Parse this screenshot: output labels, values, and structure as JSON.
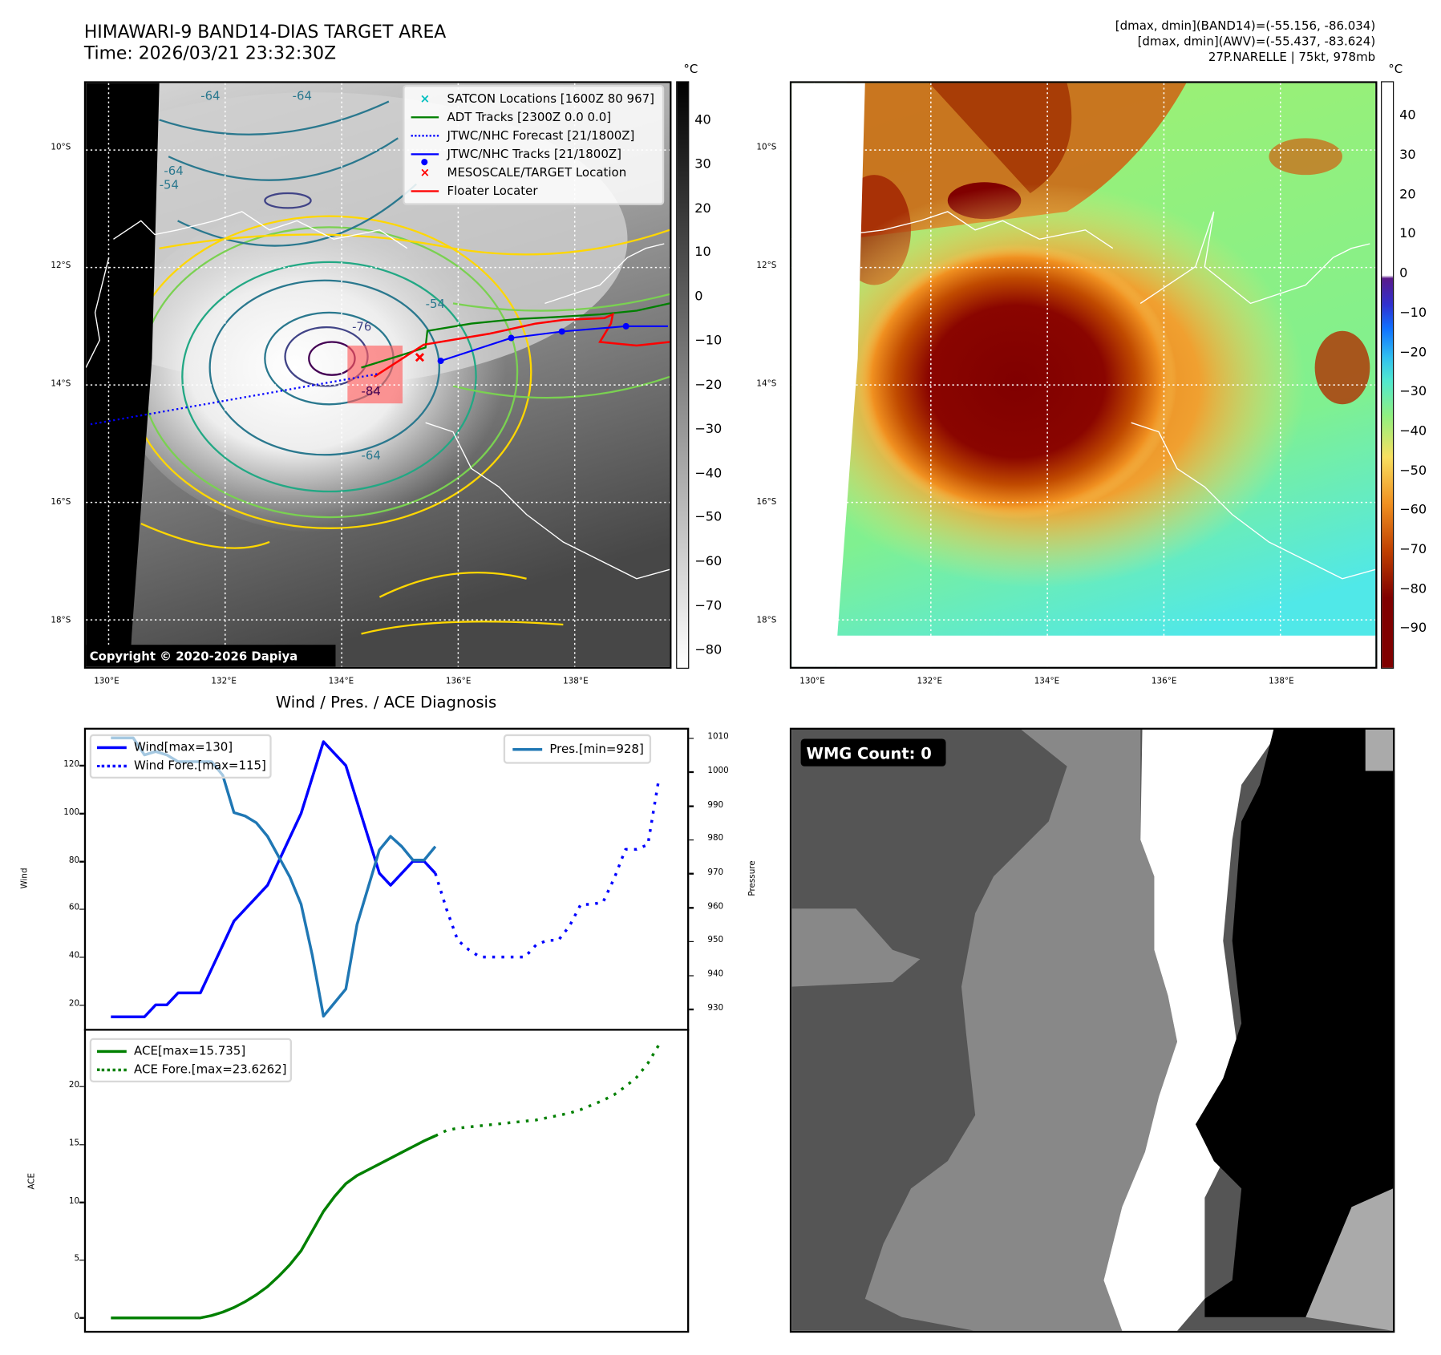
{
  "left_map": {
    "title_line1": "HIMAWARI-9 BAND14-DIAS TARGET AREA",
    "title_line2": "Time: 2026/03/21 23:32:30Z",
    "copyright": "Copyright © 2020-2026 Dapiya",
    "colorbar_unit": "°C",
    "colorbar_ticks": [
      "40",
      "30",
      "20",
      "10",
      "0",
      "−10",
      "−20",
      "−30",
      "−40",
      "−50",
      "−60",
      "−70",
      "−80"
    ],
    "colorbar_tick_values": [
      40,
      30,
      20,
      10,
      0,
      -10,
      -20,
      -30,
      -40,
      -50,
      -60,
      -70,
      -80
    ],
    "colorbar_range": [
      49,
      -84
    ],
    "contour_labels": [
      "-64",
      "-64",
      "-54",
      "-64",
      "-76",
      "-84",
      "-64",
      "-54"
    ],
    "legend": [
      {
        "label": "SATCON Locations [1600Z 80 967]",
        "color": "#00c0c0",
        "marker": "x"
      },
      {
        "label": "ADT Tracks [2300Z 0.0 0.0]",
        "color": "#008000",
        "marker": "line"
      },
      {
        "label": "JTWC/NHC Forecast [21/1800Z]",
        "color": "#0000ff",
        "marker": "dotted"
      },
      {
        "label": "JTWC/NHC Tracks [21/1800Z]",
        "color": "#0000ff",
        "marker": "line-dot"
      },
      {
        "label": "MESOSCALE/TARGET Location",
        "color": "#ff0000",
        "marker": "x"
      },
      {
        "label": "Floater Locater",
        "color": "#ff0000",
        "marker": "line"
      }
    ],
    "jtwc_track": [
      [
        135.7,
        13.59
      ],
      [
        136.91,
        13.2
      ],
      [
        137.78,
        13.09
      ],
      [
        138.88,
        13.0
      ],
      [
        139.6,
        13.0
      ]
    ],
    "jtwc_forecast": [
      [
        129.69,
        14.67
      ],
      [
        134.63,
        13.81
      ]
    ],
    "target_location": [
      135.34,
      13.53
    ]
  },
  "right_map": {
    "info_line1": "[dmax, dmin](BAND14)=(-55.156, -86.034)",
    "info_line2": "[dmax, dmin](AWV)=(-55.437, -83.624)",
    "info_line3": "27P.NARELLE | 75kt, 978mb",
    "colorbar_unit": "°C",
    "colorbar_ticks": [
      "40",
      "30",
      "20",
      "10",
      "0",
      "−10",
      "−20",
      "−30",
      "−40",
      "−50",
      "−60",
      "−70",
      "−80",
      "−90"
    ],
    "colorbar_tick_values": [
      40,
      30,
      20,
      10,
      0,
      -10,
      -20,
      -30,
      -40,
      -50,
      -60,
      -70,
      -80,
      -90
    ],
    "colorbar_range": [
      49,
      -100
    ]
  },
  "map_axes": {
    "lon_ticks": [
      "130°E",
      "132°E",
      "134°E",
      "136°E",
      "138°E"
    ],
    "lon_values": [
      130,
      132,
      134,
      136,
      138
    ],
    "lat_ticks": [
      "10°S",
      "12°S",
      "14°S",
      "16°S",
      "18°S"
    ],
    "lat_values": [
      10,
      12,
      14,
      16,
      18
    ],
    "lon_range": [
      129.61,
      139.63
    ],
    "lat_range": [
      8.86,
      18.8
    ]
  },
  "chart_data": [
    {
      "type": "line",
      "title": "Wind / Pres. / ACE Diagnosis",
      "ylabel": "Wind",
      "ylabel_right": "Pressure",
      "xlim": [
        -2.4,
        51.6
      ],
      "ylim": [
        9.6,
        135.8
      ],
      "ylim_right": [
        924,
        1013
      ],
      "yticks": [
        20,
        40,
        60,
        80,
        100,
        120
      ],
      "yticks_right": [
        930,
        940,
        950,
        960,
        970,
        980,
        990,
        1000,
        1010
      ],
      "series": [
        {
          "name": "Wind[max=130]",
          "color": "#0000ff",
          "style": "solid",
          "axis": "left",
          "x": [
            0,
            1,
            2,
            3,
            4,
            5,
            6,
            7,
            8,
            9,
            10,
            11,
            12,
            13,
            14,
            15,
            16,
            17,
            18,
            19,
            20,
            21,
            22,
            23,
            24,
            25,
            26,
            27,
            28,
            29
          ],
          "values": [
            15,
            15,
            15,
            15,
            20,
            20,
            25,
            25,
            25,
            35,
            45,
            55,
            60,
            65,
            70,
            80,
            90,
            100,
            115,
            130,
            125,
            120,
            105,
            90,
            75,
            70,
            75,
            80,
            80,
            75
          ]
        },
        {
          "name": "Wind Fore.[max=115]",
          "color": "#0000ff",
          "style": "dotted",
          "axis": "left",
          "x": [
            29,
            30,
            31,
            32,
            33,
            34,
            35,
            36,
            37,
            38,
            39,
            40,
            41,
            42,
            43,
            44,
            45,
            46,
            47,
            48,
            49
          ],
          "values": [
            75,
            60,
            47,
            43,
            40,
            40,
            40,
            40,
            40,
            45,
            47,
            47,
            53,
            62,
            62,
            63,
            73,
            85,
            85,
            87,
            115
          ]
        },
        {
          "name": "Pres.[min=928]",
          "color": "#1f77b4",
          "style": "solid",
          "axis": "right",
          "x": [
            0,
            1,
            2,
            3,
            4,
            5,
            6,
            7,
            8,
            9,
            10,
            11,
            12,
            13,
            14,
            15,
            16,
            17,
            18,
            19,
            20,
            21,
            22,
            23,
            24,
            25,
            26,
            27,
            28,
            29
          ],
          "values": [
            1010,
            1010,
            1010,
            1005,
            1006,
            1005,
            1003,
            1003,
            1003,
            1003,
            999,
            988,
            987,
            985,
            981,
            975,
            969,
            961,
            946,
            928,
            932,
            936,
            955,
            966,
            977,
            981,
            978,
            974,
            974,
            978
          ]
        }
      ]
    },
    {
      "type": "line",
      "ylabel": "ACE",
      "xlim": [
        -2.4,
        51.6
      ],
      "ylim": [
        -1.2,
        24.9
      ],
      "yticks": [
        0,
        5,
        10,
        15,
        20
      ],
      "series": [
        {
          "name": "ACE[max=15.735]",
          "color": "#008000",
          "style": "solid",
          "x": [
            0,
            1,
            2,
            3,
            4,
            5,
            6,
            7,
            8,
            9,
            10,
            11,
            12,
            13,
            14,
            15,
            16,
            17,
            18,
            19,
            20,
            21,
            22,
            23,
            24,
            25,
            26,
            27,
            28,
            29
          ],
          "values": [
            0,
            0,
            0,
            0,
            0,
            0,
            0,
            0,
            0,
            0.2,
            0.5,
            0.9,
            1.4,
            2.0,
            2.7,
            3.6,
            4.6,
            5.8,
            7.5,
            9.2,
            10.5,
            11.6,
            12.3,
            12.8,
            13.3,
            13.8,
            14.3,
            14.8,
            15.3,
            15.735
          ]
        },
        {
          "name": "ACE Fore.[max=23.6262]",
          "color": "#008000",
          "style": "dotted",
          "x": [
            29,
            30,
            31,
            32,
            33,
            34,
            35,
            36,
            37,
            38,
            39,
            40,
            41,
            42,
            43,
            44,
            45,
            46,
            47,
            48,
            49
          ],
          "values": [
            15.735,
            16.2,
            16.4,
            16.5,
            16.6,
            16.7,
            16.8,
            16.9,
            17.0,
            17.1,
            17.3,
            17.5,
            17.7,
            18.0,
            18.4,
            18.8,
            19.3,
            20.0,
            20.8,
            22.0,
            23.6262
          ]
        }
      ]
    }
  ],
  "wmg": {
    "label": "WMG Count: 0"
  }
}
